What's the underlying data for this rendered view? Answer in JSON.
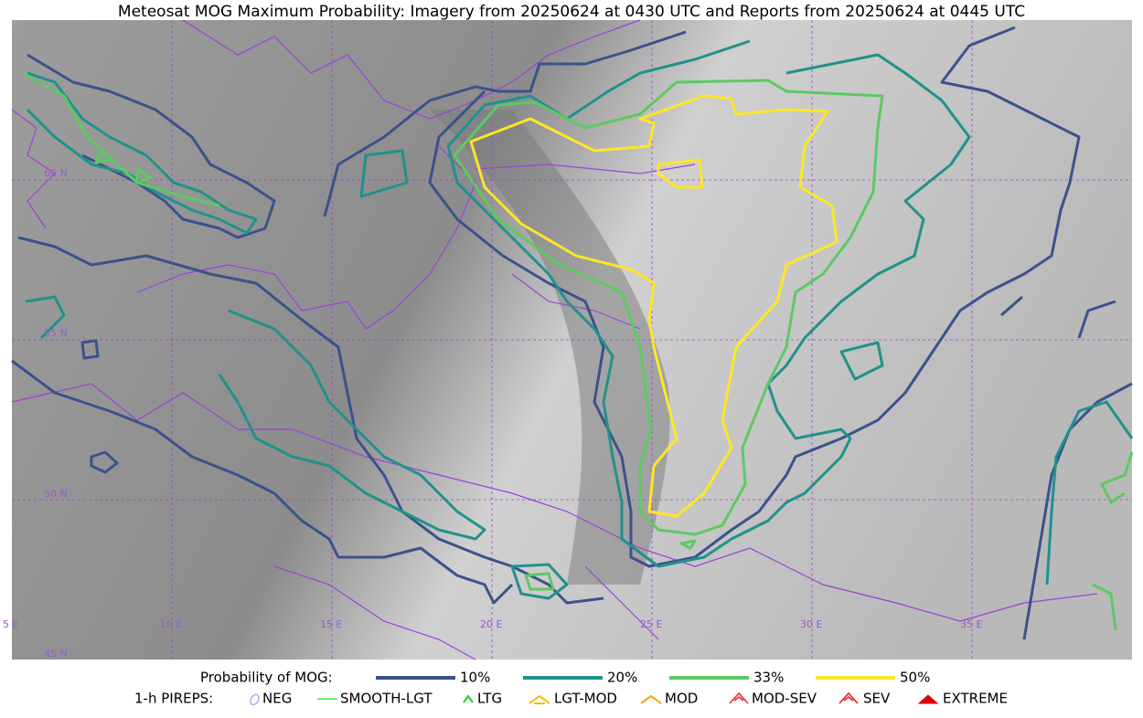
{
  "header": {
    "title": "Meteosat MOG Maximum Probability: Imagery from 20250624 at 0430 UTC and Reports from 20250624 at 0445 UTC"
  },
  "map": {
    "lon_labels": [
      "5 E",
      "10 E",
      "15 E",
      "20 E",
      "25 E",
      "30 E",
      "35 E"
    ],
    "lat_labels": [
      "60 N",
      "55 N",
      "50 N",
      "45 N"
    ]
  },
  "legend": {
    "probability": {
      "label": "Probability of MOG:",
      "items": [
        {
          "label": "10%",
          "color": "#3b528b"
        },
        {
          "label": "20%",
          "color": "#21918c"
        },
        {
          "label": "33%",
          "color": "#5ec962"
        },
        {
          "label": "50%",
          "color": "#fde725"
        }
      ]
    },
    "pireps": {
      "label": "1-h PIREPS:",
      "items": [
        {
          "label": "NEG",
          "color": "#b3a9ef"
        },
        {
          "label": "SMOOTH-LGT",
          "color": "#3ee33e"
        },
        {
          "label": "LTG",
          "color": "#1fd31f"
        },
        {
          "label": "LGT-MOD",
          "color": "#f5b800"
        },
        {
          "label": "MOD",
          "color": "#f5a300"
        },
        {
          "label": "MOD-SEV",
          "color": "#e83030"
        },
        {
          "label": "SEV",
          "color": "#e82020"
        },
        {
          "label": "EXTREME",
          "color": "#e00000"
        }
      ]
    }
  }
}
